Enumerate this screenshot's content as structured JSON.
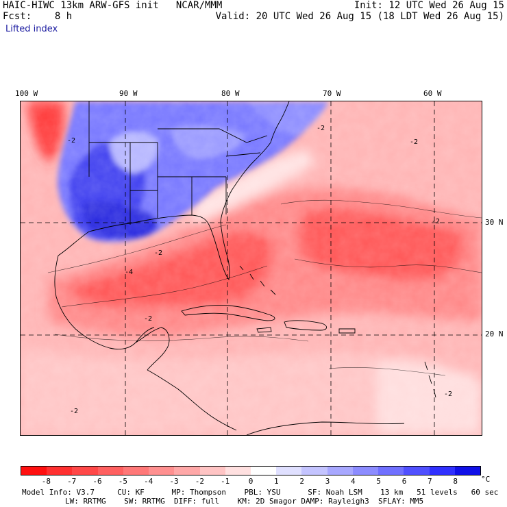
{
  "header": {
    "title_left": "HAIC-HIWC 13km ARW-GFS init   NCAR/MMM",
    "fcst": "Fcst:    8 h",
    "field": "Lifted index",
    "init": "Init: 12 UTC Wed 26 Aug 15",
    "valid": "Valid: 20 UTC Wed 26 Aug 15 (18 LDT Wed 26 Aug 15)"
  },
  "map": {
    "lon_labels": [
      "100 W",
      "90 W",
      "80 W",
      "70 W",
      "60 W"
    ],
    "lat_labels": [
      "30 N",
      "20 N"
    ],
    "contour_labels": [
      "-2",
      "-2",
      "-2",
      "-2",
      "-4",
      "-2",
      "-2",
      "-2",
      "-2"
    ]
  },
  "colorbar": {
    "labels": [
      "-8",
      "-7",
      "-6",
      "-5",
      "-4",
      "-3",
      "-2",
      "-1",
      "0",
      "1",
      "2",
      "3",
      "4",
      "5",
      "6",
      "7",
      "8"
    ],
    "unit": "°C",
    "colors": [
      "#ff1010",
      "#ff3030",
      "#ff4848",
      "#ff6060",
      "#ff7878",
      "#ff9090",
      "#ffa8a8",
      "#ffc4c4",
      "#ffe0e0",
      "#ffffff",
      "#e0e0ff",
      "#c4c4ff",
      "#a8a8ff",
      "#8c8cff",
      "#7070ff",
      "#5050ff",
      "#3030ff",
      "#1010e8"
    ]
  },
  "footer": {
    "line1": "Model Info: V3.7     CU: KF      MP: Thompson    PBL: YSU      SF: Noah LSM    13 km   51 levels   60 sec",
    "line2": "LW: RRTMG    SW: RRTMG  DIFF: full    KM: 2D Smagor DAMP: Rayleigh3  SFLAY: MM5"
  }
}
